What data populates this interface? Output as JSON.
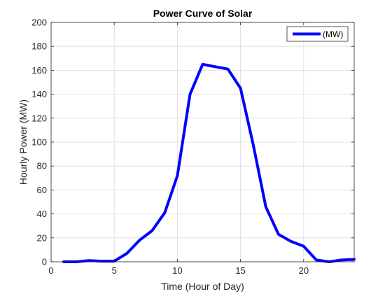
{
  "chart_data": {
    "type": "line",
    "title": "Power Curve of Solar",
    "xlabel": "Time (Hour of Day)",
    "ylabel": "Hourly Power (MW)",
    "xlim": [
      0,
      24
    ],
    "ylim": [
      0,
      200
    ],
    "xticks": [
      0,
      5,
      10,
      15,
      20
    ],
    "yticks": [
      0,
      20,
      40,
      60,
      80,
      100,
      120,
      140,
      160,
      180,
      200
    ],
    "grid": true,
    "legend_position": "top-right",
    "series": [
      {
        "name": "(MW)",
        "color": "#0000ff",
        "x": [
          1,
          2,
          3,
          4,
          5,
          6,
          7,
          8,
          9,
          10,
          11,
          12,
          13,
          14,
          15,
          16,
          17,
          18,
          19,
          20,
          21,
          22,
          23,
          24
        ],
        "y": [
          0,
          0,
          1,
          0.5,
          0.5,
          7,
          18,
          26,
          41,
          72,
          140,
          165,
          163,
          161,
          145,
          98,
          46,
          23,
          17,
          13,
          1.5,
          0,
          1.5,
          2
        ]
      }
    ]
  }
}
